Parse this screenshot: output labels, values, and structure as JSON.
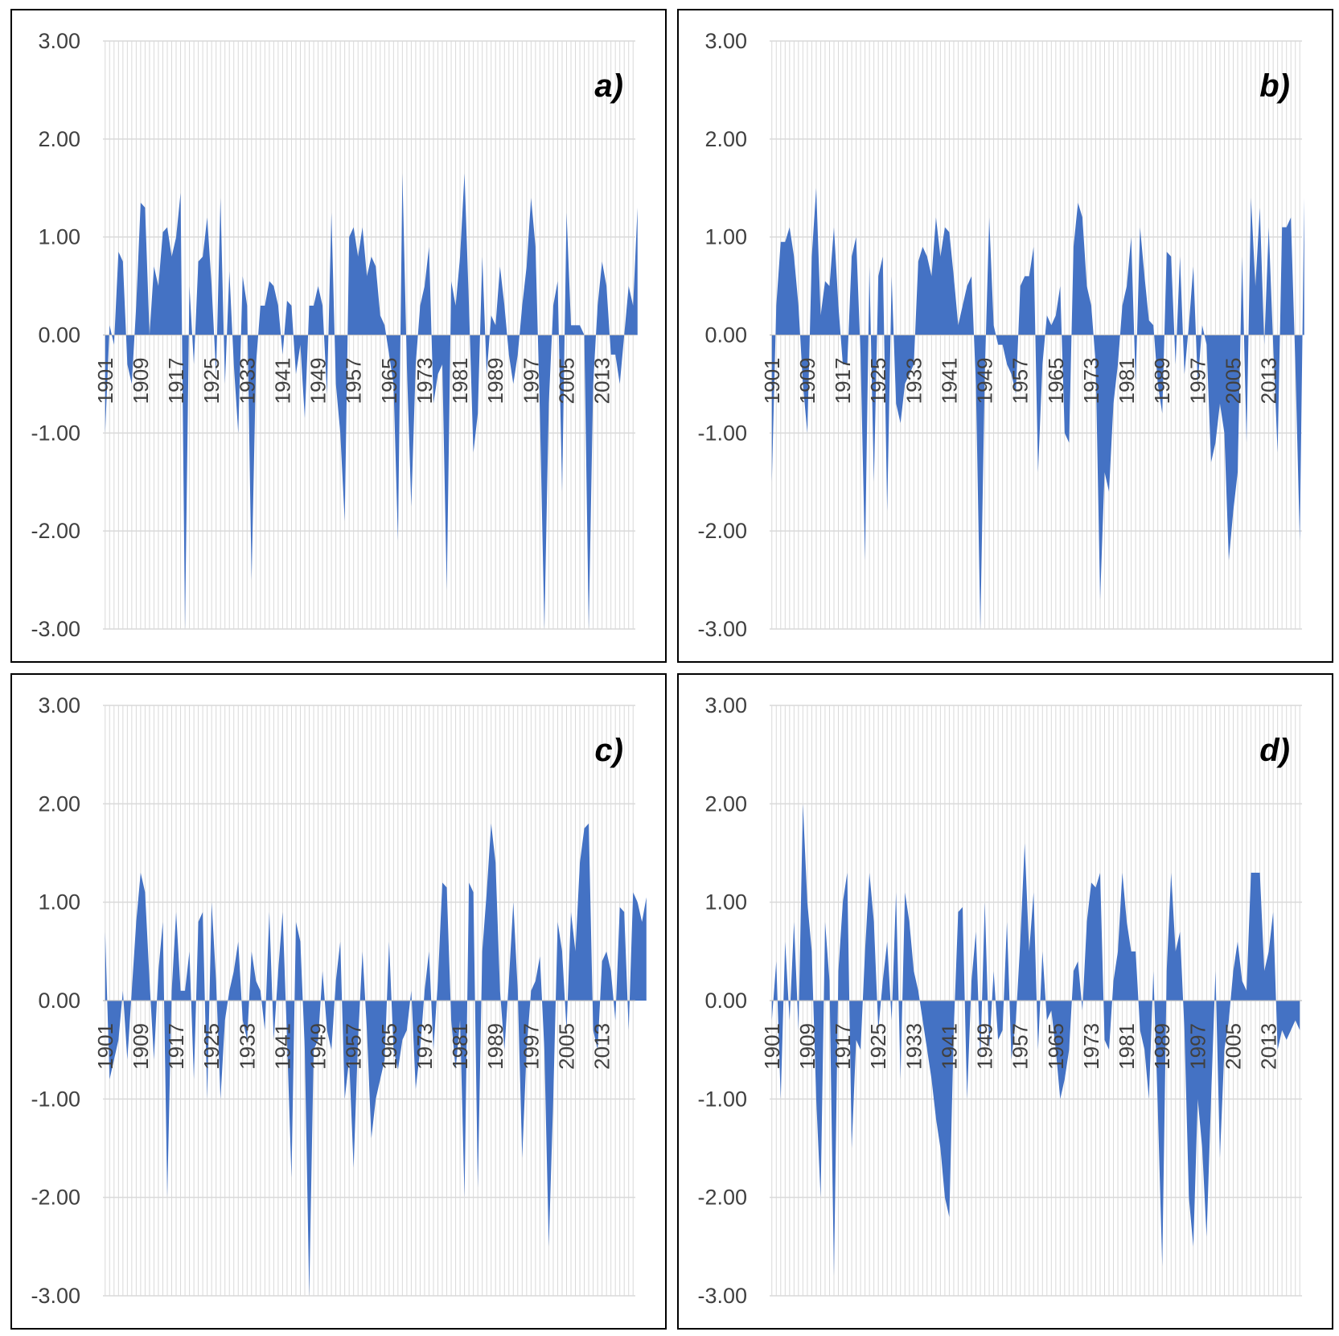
{
  "colors": {
    "series": "#4472C4",
    "grid": "#d9d9d9",
    "text": "#404040",
    "border": "#000000"
  },
  "chart_data": [
    {
      "type": "area",
      "panel_label": "a)",
      "yticks": [
        "3.00",
        "2.00",
        "1.00",
        "0.00",
        "-1.00",
        "-2.00",
        "-3.00"
      ],
      "ylim": [
        -3,
        3
      ],
      "x_tick_labels": [
        "1901",
        "1909",
        "1917",
        "1925",
        "1933",
        "1941",
        "1949",
        "1957",
        "1965",
        "1973",
        "1981",
        "1989",
        "1997",
        "2005",
        "2013"
      ],
      "x_start": 1901,
      "x_end": 2020,
      "grid": true,
      "series": [
        {
          "values": [
            -1.0,
            0.1,
            -0.1,
            0.85,
            0.75,
            -0.3,
            -0.5,
            0.3,
            1.35,
            1.3,
            0.0,
            0.7,
            0.5,
            1.05,
            1.1,
            0.8,
            1.0,
            1.45,
            -3.0,
            0.5,
            -0.3,
            0.75,
            0.8,
            1.2,
            0.5,
            -0.4,
            1.4,
            -0.5,
            0.65,
            -0.3,
            -1.0,
            0.6,
            0.3,
            -2.5,
            -0.3,
            0.3,
            0.3,
            0.55,
            0.5,
            0.3,
            -0.2,
            0.35,
            0.3,
            -0.4,
            -0.1,
            -0.85,
            0.3,
            0.3,
            0.5,
            0.3,
            -0.6,
            1.25,
            -0.5,
            -1.0,
            -1.9,
            1.0,
            1.1,
            0.8,
            1.1,
            0.6,
            0.8,
            0.7,
            0.2,
            0.1,
            -0.2,
            -0.5,
            -2.1,
            1.65,
            -0.3,
            -1.75,
            -0.3,
            0.3,
            0.5,
            0.9,
            -0.7,
            -0.4,
            -0.3,
            -2.6,
            0.55,
            0.3,
            0.8,
            1.65,
            0.3,
            -1.2,
            -0.8,
            0.8,
            -0.4,
            0.2,
            0.1,
            0.7,
            0.3,
            -0.2,
            -0.5,
            -0.2,
            0.3,
            0.7,
            1.4,
            0.9,
            -0.8,
            -3.0,
            -0.7,
            0.3,
            0.55,
            -1.6,
            1.25,
            0.1,
            0.1,
            0.1,
            0.0,
            -3.0,
            -0.5,
            0.3,
            0.75,
            0.5,
            -0.2,
            -0.2,
            -0.5,
            0.0,
            0.5,
            0.3,
            1.3
          ]
        }
      ]
    },
    {
      "type": "area",
      "panel_label": "b)",
      "yticks": [
        "3.00",
        "2.00",
        "1.00",
        "0.00",
        "-1.00",
        "-2.00",
        "-3.00"
      ],
      "ylim": [
        -3,
        3
      ],
      "x_tick_labels": [
        "1901",
        "1909",
        "1917",
        "1925",
        "1933",
        "1941",
        "1949",
        "1957",
        "1965",
        "1973",
        "1981",
        "1989",
        "1997",
        "2005",
        "2013"
      ],
      "x_start": 1901,
      "x_end": 2020,
      "grid": true,
      "series": [
        {
          "values": [
            -1.5,
            0.3,
            0.95,
            0.95,
            1.1,
            0.8,
            0.3,
            -0.5,
            -1.0,
            0.8,
            1.5,
            0.2,
            0.55,
            0.5,
            1.1,
            0.3,
            -0.3,
            -0.3,
            0.8,
            1.0,
            -0.2,
            -2.3,
            0.7,
            -1.5,
            0.6,
            0.8,
            -1.8,
            0.6,
            -0.7,
            -0.9,
            -0.5,
            -0.4,
            -0.3,
            0.75,
            0.9,
            0.8,
            0.6,
            1.2,
            0.8,
            1.1,
            1.05,
            0.6,
            0.1,
            0.3,
            0.5,
            0.6,
            -0.5,
            -3.0,
            -0.4,
            1.2,
            0.1,
            -0.1,
            -0.1,
            -0.3,
            -0.4,
            -0.6,
            0.5,
            0.6,
            0.6,
            0.9,
            -1.4,
            -0.3,
            0.2,
            0.1,
            0.2,
            0.5,
            -1.0,
            -1.1,
            0.9,
            1.35,
            1.2,
            0.5,
            0.3,
            -0.3,
            -2.7,
            -1.4,
            -1.6,
            -0.7,
            -0.3,
            0.3,
            0.5,
            1.0,
            -0.5,
            1.1,
            0.6,
            0.15,
            0.1,
            -0.5,
            -0.8,
            0.85,
            0.8,
            -0.3,
            0.8,
            -0.4,
            0.1,
            0.7,
            -0.5,
            0.1,
            -0.1,
            -1.3,
            -1.1,
            -0.7,
            -1.0,
            -2.3,
            -1.8,
            -1.4,
            0.8,
            -1.1,
            1.4,
            0.5,
            1.3,
            -0.1,
            1.1,
            -0.1,
            -1.2,
            1.1,
            1.1,
            1.2,
            -0.3,
            -2.1,
            1.4
          ]
        }
      ]
    },
    {
      "type": "area",
      "panel_label": "c)",
      "yticks": [
        "3.00",
        "2.00",
        "1.00",
        "0.00",
        "-1.00",
        "-2.00",
        "-3.00"
      ],
      "ylim": [
        -3,
        3
      ],
      "x_tick_labels": [
        "1901",
        "1909",
        "1917",
        "1925",
        "1933",
        "1941",
        "1949",
        "1957",
        "1965",
        "1973",
        "1981",
        "1989",
        "1997",
        "2005",
        "2013"
      ],
      "x_start": 1901,
      "x_end": 2020,
      "grid": true,
      "series": [
        {
          "values": [
            0.7,
            -0.8,
            -0.6,
            -0.4,
            0.1,
            -0.6,
            0.1,
            0.8,
            1.3,
            1.1,
            0.2,
            -0.6,
            0.3,
            0.8,
            -2.0,
            0.1,
            0.9,
            0.1,
            0.1,
            0.5,
            -0.8,
            0.8,
            0.9,
            -1.0,
            1.0,
            0.2,
            -1.0,
            -0.2,
            0.1,
            0.3,
            0.6,
            -0.2,
            -0.4,
            0.5,
            0.2,
            0.1,
            -0.3,
            0.9,
            -0.4,
            0.3,
            0.9,
            -0.4,
            -1.8,
            0.8,
            0.6,
            -0.5,
            -3.0,
            -0.5,
            -0.4,
            0.3,
            -0.3,
            -0.5,
            0.2,
            0.6,
            -1.0,
            -0.6,
            -1.7,
            -0.4,
            0.5,
            -0.3,
            -1.4,
            -1.0,
            -0.8,
            -0.6,
            0.6,
            -0.5,
            -0.7,
            -0.4,
            -0.3,
            0.1,
            -0.9,
            -0.5,
            0.1,
            0.5,
            -0.5,
            0.2,
            1.2,
            1.15,
            -0.2,
            -0.7,
            -0.2,
            -2.0,
            1.2,
            1.1,
            -1.9,
            0.5,
            1.1,
            1.8,
            1.4,
            0.1,
            -0.5,
            0.2,
            1.0,
            0.1,
            -1.6,
            -0.5,
            0.1,
            0.2,
            0.45,
            -0.5,
            -2.5,
            -1.0,
            0.8,
            0.5,
            -0.3,
            0.9,
            0.5,
            1.4,
            1.75,
            1.8,
            -0.3,
            -0.5,
            0.4,
            0.5,
            0.3,
            -0.2,
            0.95,
            0.9,
            -0.3,
            1.1,
            1.0,
            0.8,
            1.05
          ]
        }
      ]
    },
    {
      "type": "area",
      "panel_label": "d)",
      "yticks": [
        "3.00",
        "2.00",
        "1.00",
        "0.00",
        "-1.00",
        "-2.00",
        "-3.00"
      ],
      "ylim": [
        -3,
        3
      ],
      "x_tick_labels": [
        "1901",
        "1909",
        "1917",
        "1925",
        "1933",
        "1941",
        "1949",
        "1957",
        "1965",
        "1973",
        "1981",
        "1989",
        "1997",
        "2005",
        "2013"
      ],
      "x_start": 1901,
      "x_end": 2020,
      "grid": true,
      "series": [
        {
          "values": [
            -0.2,
            0.4,
            -1.0,
            0.6,
            -0.2,
            0.8,
            -0.3,
            2.0,
            1.0,
            0.5,
            -1.0,
            -2.0,
            0.8,
            0.2,
            -2.8,
            0.3,
            1.0,
            1.3,
            -1.5,
            -0.4,
            -0.5,
            0.5,
            1.3,
            0.8,
            -0.3,
            0.2,
            0.6,
            -0.2,
            1.1,
            -0.8,
            1.1,
            0.8,
            0.3,
            0.1,
            -0.2,
            -0.5,
            -0.8,
            -1.2,
            -1.5,
            -2.0,
            -2.2,
            -0.3,
            0.9,
            0.95,
            -1.0,
            0.2,
            0.7,
            -0.6,
            1.0,
            -0.5,
            0.3,
            -0.4,
            -0.3,
            0.8,
            -0.6,
            -0.2,
            0.6,
            1.6,
            0.5,
            1.1,
            -0.5,
            0.5,
            -0.2,
            -0.1,
            -0.5,
            -1.0,
            -0.8,
            -0.5,
            0.3,
            0.4,
            -0.1,
            0.8,
            1.2,
            1.15,
            1.3,
            -0.4,
            -0.5,
            0.2,
            0.5,
            1.3,
            0.8,
            0.5,
            0.5,
            -0.3,
            -0.5,
            -1.0,
            0.3,
            -1.1,
            -2.7,
            0.3,
            1.3,
            0.5,
            0.7,
            -0.3,
            -2.0,
            -2.5,
            -1.0,
            -1.5,
            -2.4,
            -1.0,
            0.3,
            -1.6,
            -0.5,
            -0.2,
            0.3,
            0.6,
            0.2,
            0.1,
            1.3,
            1.3,
            1.3,
            0.3,
            0.5,
            0.9,
            -0.5,
            -0.3,
            -0.4,
            -0.3,
            -0.2,
            -0.3
          ]
        }
      ]
    }
  ]
}
